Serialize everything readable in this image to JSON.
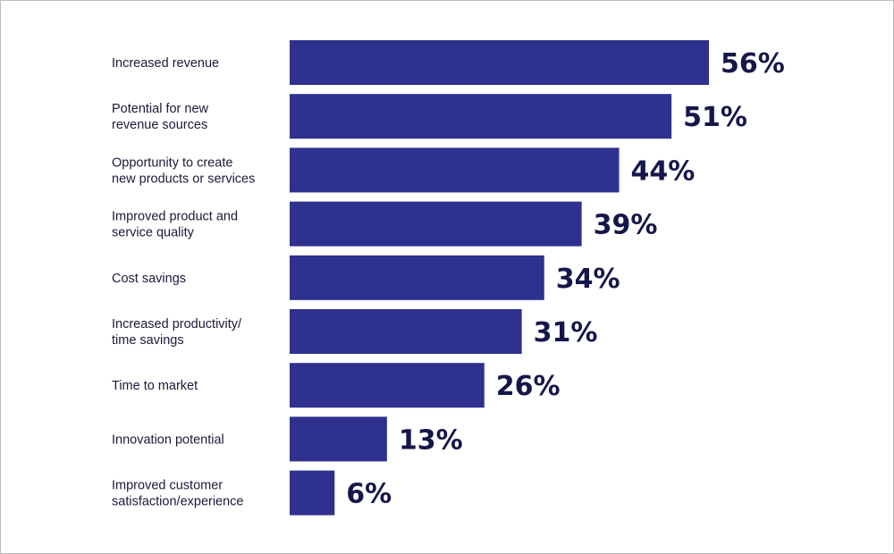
{
  "chart_data": {
    "type": "bar",
    "orientation": "horizontal",
    "categories": [
      [
        "Increased revenue"
      ],
      [
        "Potential for new",
        "revenue sources"
      ],
      [
        "Opportunity to create",
        "new products or services"
      ],
      [
        "Improved product and",
        "service quality"
      ],
      [
        "Cost savings"
      ],
      [
        "Increased productivity/",
        "time savings"
      ],
      [
        "Time to market"
      ],
      [
        "Innovation potential"
      ],
      [
        "Improved customer",
        "satisfaction/experience"
      ]
    ],
    "values": [
      56,
      51,
      44,
      39,
      34,
      31,
      26,
      13,
      6
    ],
    "value_labels": [
      "56%",
      "51%",
      "44%",
      "39%",
      "34%",
      "31%",
      "26%",
      "13%",
      "6%"
    ],
    "title": "",
    "xlabel": "",
    "ylabel": "",
    "xlim": [
      0,
      56
    ],
    "grid": false,
    "legend": "none",
    "bar_color": "#2e318d",
    "label_color": "#15164a"
  }
}
